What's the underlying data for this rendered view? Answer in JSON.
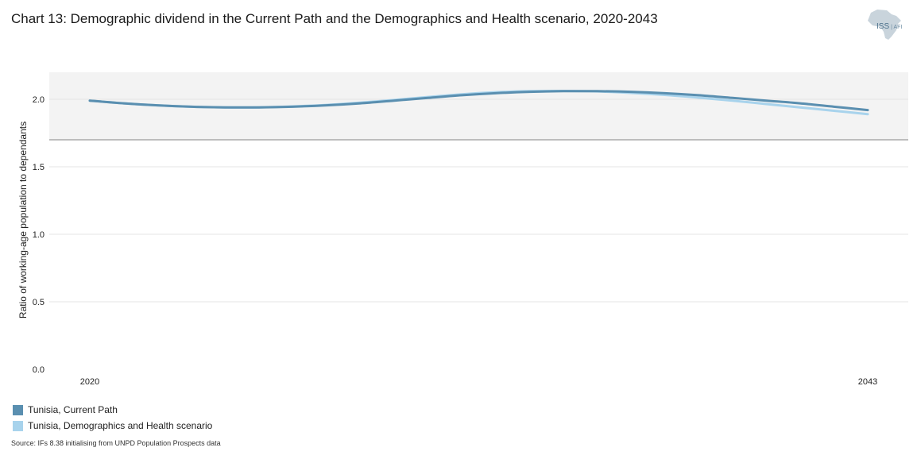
{
  "title": "Chart 13: Demographic dividend in the Current Path and the Demographics and Health scenario, 2020-2043",
  "logo": {
    "main": "ISS",
    "sub": "AFI"
  },
  "source": "Source: IFs 8.38 initialising from UNPD Population Prospects data",
  "colors": {
    "current_path": "#5a8fb0",
    "scenario": "#a8d3ec",
    "band": "#f3f3f3",
    "threshold": "#aaaaaa"
  },
  "chart_data": {
    "type": "line",
    "ylabel": "Ratio of working-age population to dependants",
    "xlabel": "",
    "xlim": [
      2020,
      2043
    ],
    "ylim": [
      0,
      2.2
    ],
    "yticks": [
      0.0,
      0.5,
      1.0,
      1.5,
      2.0
    ],
    "ytick_labels": [
      "0.0",
      "0.5",
      "1.0",
      "1.5",
      "2.0"
    ],
    "xticks": [
      2020,
      2043
    ],
    "xtick_labels": [
      "2020",
      "2043"
    ],
    "shaded_band": {
      "from": 1.7,
      "to": 2.2
    },
    "threshold_line": 1.7,
    "grid": true,
    "legend_position": "bottom-left",
    "series": [
      {
        "name": "Tunisia, Current Path",
        "color": "#5a8fb0",
        "x": [
          2020,
          2021,
          2022,
          2023,
          2024,
          2025,
          2026,
          2027,
          2028,
          2029,
          2030,
          2031,
          2032,
          2033,
          2034,
          2035,
          2036,
          2037,
          2038,
          2039,
          2040,
          2041,
          2042,
          2043
        ],
        "y": [
          1.99,
          1.97,
          1.955,
          1.945,
          1.94,
          1.94,
          1.945,
          1.955,
          1.97,
          1.99,
          2.01,
          2.03,
          2.045,
          2.055,
          2.06,
          2.06,
          2.055,
          2.045,
          2.03,
          2.01,
          1.99,
          1.97,
          1.945,
          1.92
        ]
      },
      {
        "name": "Tunisia, Demographics and Health scenario",
        "color": "#a8d3ec",
        "x": [
          2020,
          2021,
          2022,
          2023,
          2024,
          2025,
          2026,
          2027,
          2028,
          2029,
          2030,
          2031,
          2032,
          2033,
          2034,
          2035,
          2036,
          2037,
          2038,
          2039,
          2040,
          2041,
          2042,
          2043
        ],
        "y": [
          1.99,
          1.97,
          1.955,
          1.945,
          1.94,
          1.94,
          1.947,
          1.958,
          1.975,
          1.995,
          2.017,
          2.037,
          2.052,
          2.06,
          2.062,
          2.058,
          2.047,
          2.032,
          2.012,
          1.99,
          1.965,
          1.94,
          1.915,
          1.89
        ]
      }
    ]
  }
}
